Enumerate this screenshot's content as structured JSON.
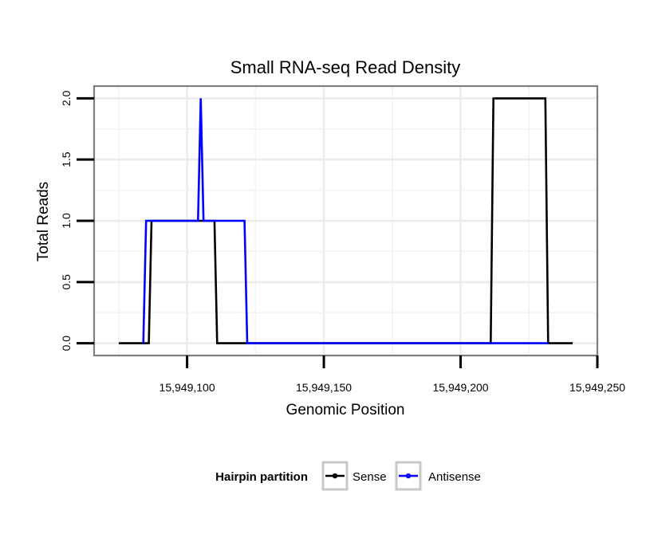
{
  "chart_data": {
    "type": "line",
    "title": "Small RNA-seq Read Density",
    "xlabel": "Genomic Position",
    "ylabel": "Total Reads",
    "xlim": [
      15949066,
      15949250
    ],
    "ylim": [
      -0.1,
      2.1
    ],
    "x_ticks": [
      15949100,
      15949150,
      15949200,
      15949250
    ],
    "x_tick_labels": [
      "15,949,100",
      "15,949,150",
      "15,949,200",
      "15,949,250"
    ],
    "y_ticks": [
      0,
      0.5,
      1,
      1.5,
      2
    ],
    "y_tick_labels": [
      "0.0",
      "0.5",
      "1.0",
      "1.5",
      "2.0"
    ],
    "grid": true,
    "legend": {
      "title": "Hairpin partition",
      "placement": "bottom"
    },
    "series": [
      {
        "name": "Sense",
        "color": "#000000",
        "x": [
          15949075,
          15949086,
          15949087,
          15949110,
          15949111,
          15949211,
          15949212,
          15949231,
          15949232,
          15949241
        ],
        "values": [
          0,
          0,
          1,
          1,
          0,
          0,
          2,
          2,
          0,
          0
        ]
      },
      {
        "name": "Antisense",
        "color": "#0000ff",
        "x": [
          15949084,
          15949085,
          15949104,
          15949105,
          15949106,
          15949121,
          15949122,
          15949232
        ],
        "values": [
          0,
          1,
          1,
          2,
          1,
          1,
          0,
          0
        ]
      }
    ]
  }
}
